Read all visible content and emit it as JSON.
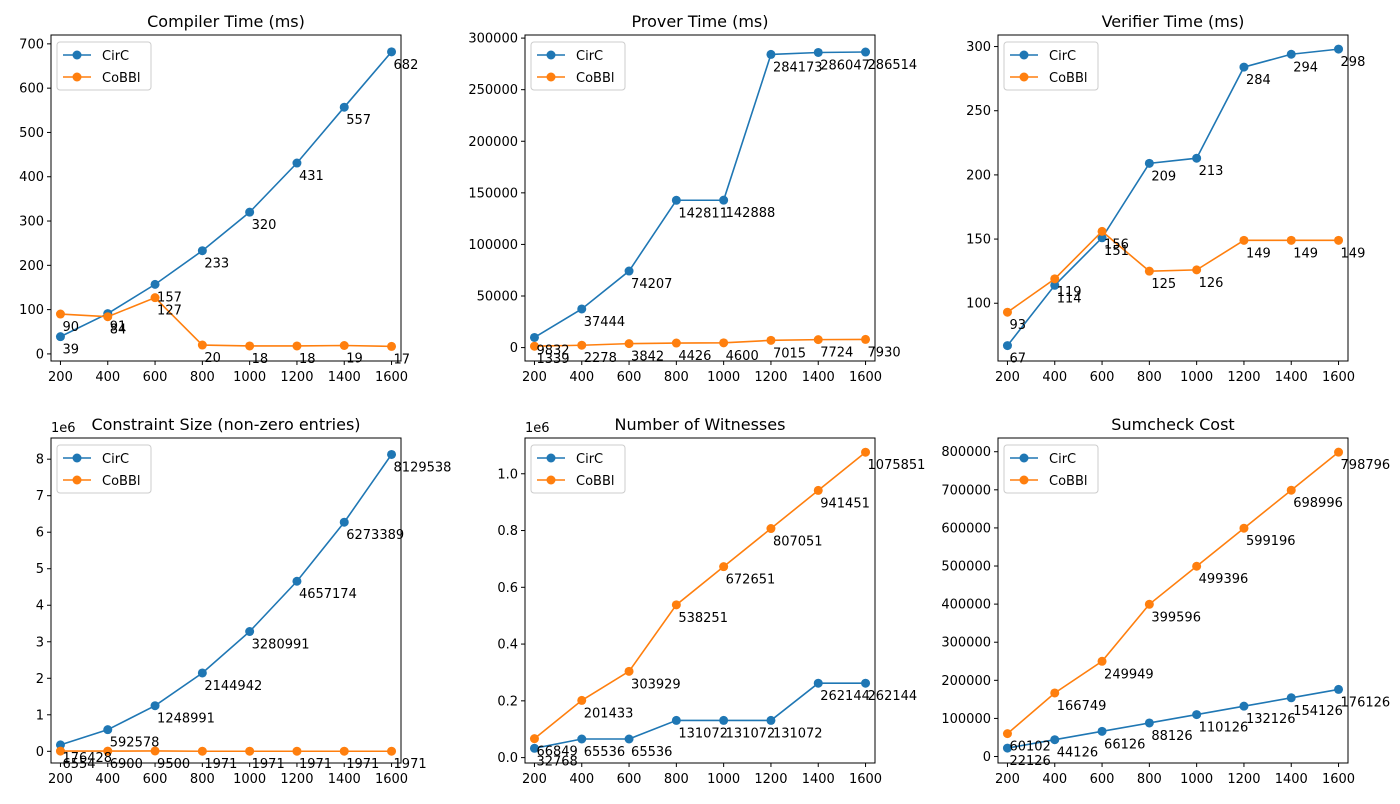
{
  "colors": {
    "CirC": "#1f77b4",
    "CoBBl": "#ff7f0e",
    "axis": "#000000",
    "legend_border": "#cccccc"
  },
  "chart_data": [
    {
      "type": "line",
      "title": "Compiler Time (ms)",
      "x": [
        200,
        400,
        600,
        800,
        1000,
        1200,
        1400,
        1600
      ],
      "xticks": [
        "200",
        "400",
        "600",
        "800",
        "1000",
        "1200",
        "1400",
        "1600"
      ],
      "ylim": [
        -16,
        720
      ],
      "yticks": [
        0,
        100,
        200,
        300,
        400,
        500,
        600,
        700
      ],
      "ytick_labels": [
        "0",
        "100",
        "200",
        "300",
        "400",
        "500",
        "600",
        "700"
      ],
      "offset_label": "",
      "legend": "upper-left",
      "series": [
        {
          "name": "CirC",
          "values": [
            39,
            91,
            157,
            233,
            320,
            431,
            557,
            682
          ],
          "labels": [
            "39",
            "91",
            "157",
            "233",
            "320",
            "431",
            "557",
            "682"
          ]
        },
        {
          "name": "CoBBl",
          "values": [
            90,
            84,
            127,
            20,
            18,
            18,
            19,
            17
          ],
          "labels": [
            "90",
            "84",
            "127",
            "20",
            "18",
            "18",
            "19",
            "17"
          ]
        }
      ]
    },
    {
      "type": "line",
      "title": "Prover Time (ms)",
      "x": [
        200,
        400,
        600,
        800,
        1000,
        1200,
        1400,
        1600
      ],
      "xticks": [
        "200",
        "400",
        "600",
        "800",
        "1000",
        "1200",
        "1400",
        "1600"
      ],
      "ylim": [
        -13000,
        303000
      ],
      "yticks": [
        0,
        50000,
        100000,
        150000,
        200000,
        250000,
        300000
      ],
      "ytick_labels": [
        "0",
        "50000",
        "100000",
        "150000",
        "200000",
        "250000",
        "300000"
      ],
      "offset_label": "",
      "legend": "upper-left",
      "series": [
        {
          "name": "CirC",
          "values": [
            9832,
            37444,
            74207,
            142811,
            142888,
            284173,
            286047,
            286514
          ],
          "labels": [
            "9832",
            "37444",
            "74207",
            "142811",
            "142888",
            "284173",
            "286047",
            "286514"
          ]
        },
        {
          "name": "CoBBl",
          "values": [
            1339,
            2278,
            3842,
            4426,
            4600,
            7015,
            7724,
            7930
          ],
          "labels": [
            "1339",
            "2278",
            "3842",
            "4426",
            "4600",
            "7015",
            "7724",
            "7930"
          ]
        }
      ]
    },
    {
      "type": "line",
      "title": "Verifier Time (ms)",
      "x": [
        200,
        400,
        600,
        800,
        1000,
        1200,
        1400,
        1600
      ],
      "xticks": [
        "200",
        "400",
        "600",
        "800",
        "1000",
        "1200",
        "1400",
        "1600"
      ],
      "ylim": [
        55,
        309
      ],
      "yticks": [
        100,
        150,
        200,
        250,
        300
      ],
      "ytick_labels": [
        "100",
        "150",
        "200",
        "250",
        "300"
      ],
      "offset_label": "",
      "legend": "upper-left",
      "series": [
        {
          "name": "CirC",
          "values": [
            67,
            114,
            151,
            209,
            213,
            284,
            294,
            298
          ],
          "labels": [
            "67",
            "114",
            "151",
            "209",
            "213",
            "284",
            "294",
            "298"
          ]
        },
        {
          "name": "CoBBl",
          "values": [
            93,
            119,
            156,
            125,
            126,
            149,
            149,
            149
          ],
          "labels": [
            "93",
            "119",
            "156",
            "125",
            "126",
            "149",
            "149",
            "149"
          ]
        }
      ]
    },
    {
      "type": "line",
      "title": "Constraint Size (non-zero entries)",
      "x": [
        200,
        400,
        600,
        800,
        1000,
        1200,
        1400,
        1600
      ],
      "xticks": [
        "200",
        "400",
        "600",
        "800",
        "1000",
        "1200",
        "1400",
        "1600"
      ],
      "ylim": [
        -320000,
        8580000
      ],
      "yticks": [
        0,
        1000000,
        2000000,
        3000000,
        4000000,
        5000000,
        6000000,
        7000000,
        8000000
      ],
      "ytick_labels": [
        "0",
        "1",
        "2",
        "3",
        "4",
        "5",
        "6",
        "7",
        "8"
      ],
      "offset_label": "1e6",
      "legend": "upper-left",
      "series": [
        {
          "name": "CirC",
          "values": [
            176428,
            592578,
            1248991,
            2144942,
            3280991,
            4657174,
            6273389,
            8129538
          ],
          "labels": [
            "176428",
            "592578",
            "1248991",
            "2144942",
            "3280991",
            "4657174",
            "6273389",
            "8129538"
          ]
        },
        {
          "name": "CoBBl",
          "values": [
            6554,
            6900,
            9500,
            1971,
            1971,
            1971,
            1971,
            1971
          ],
          "labels": [
            "6554",
            "6900",
            "9500",
            "1971",
            "1971",
            "1971",
            "1971",
            "1971"
          ]
        }
      ]
    },
    {
      "type": "line",
      "title": "Number of Witnesses",
      "x": [
        200,
        400,
        600,
        800,
        1000,
        1200,
        1400,
        1600
      ],
      "xticks": [
        "200",
        "400",
        "600",
        "800",
        "1000",
        "1200",
        "1400",
        "1600"
      ],
      "ylim": [
        -19000,
        1126000
      ],
      "yticks": [
        0,
        200000,
        400000,
        600000,
        800000,
        1000000
      ],
      "ytick_labels": [
        "0.0",
        "0.2",
        "0.4",
        "0.6",
        "0.8",
        "1.0"
      ],
      "offset_label": "1e6",
      "legend": "upper-left",
      "series": [
        {
          "name": "CirC",
          "values": [
            32768,
            65536,
            65536,
            131072,
            131072,
            131072,
            262144,
            262144
          ],
          "labels": [
            "32768",
            "65536",
            "65536",
            "131072",
            "131072",
            "131072",
            "262144",
            "262144"
          ]
        },
        {
          "name": "CoBBl",
          "values": [
            66849,
            201433,
            303929,
            538251,
            672651,
            807051,
            941451,
            1075851
          ],
          "labels": [
            "66849",
            "201433",
            "303929",
            "538251",
            "672651",
            "807051",
            "941451",
            "1075851"
          ]
        }
      ]
    },
    {
      "type": "line",
      "title": "Sumcheck Cost",
      "x": [
        200,
        400,
        600,
        800,
        1000,
        1200,
        1400,
        1600
      ],
      "xticks": [
        "200",
        "400",
        "600",
        "800",
        "1000",
        "1200",
        "1400",
        "1600"
      ],
      "ylim": [
        -17000,
        836000
      ],
      "yticks": [
        0,
        100000,
        200000,
        300000,
        400000,
        500000,
        600000,
        700000,
        800000
      ],
      "ytick_labels": [
        "0",
        "100000",
        "200000",
        "300000",
        "400000",
        "500000",
        "600000",
        "700000",
        "800000"
      ],
      "offset_label": "",
      "legend": "upper-left",
      "series": [
        {
          "name": "CirC",
          "values": [
            22126,
            44126,
            66126,
            88126,
            110126,
            132126,
            154126,
            176126
          ],
          "labels": [
            "22126",
            "44126",
            "66126",
            "88126",
            "110126",
            "132126",
            "154126",
            "176126"
          ]
        },
        {
          "name": "CoBBl",
          "values": [
            60102,
            166749,
            249949,
            399596,
            499396,
            599196,
            698996,
            798796
          ],
          "labels": [
            "60102",
            "166749",
            "249949",
            "399596",
            "499396",
            "599196",
            "698996",
            "798796"
          ]
        }
      ]
    }
  ]
}
